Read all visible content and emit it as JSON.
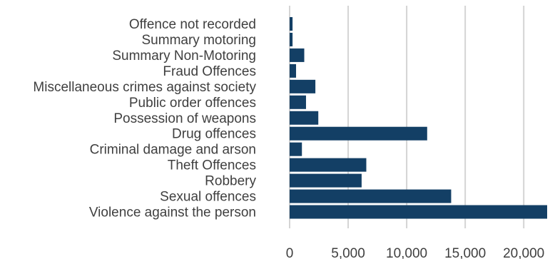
{
  "chart_data": {
    "type": "bar",
    "orientation": "horizontal",
    "categories": [
      "Offence not recorded",
      "Summary motoring",
      "Summary Non-Motoring",
      "Fraud Offences",
      "Miscellaneous crimes against society",
      "Public order offences",
      "Possession of weapons",
      "Drug offences",
      "Criminal damage and arson",
      "Theft Offences",
      "Robbery",
      "Sexual offences",
      "Violence against the person"
    ],
    "values": [
      250,
      250,
      1250,
      550,
      2200,
      1400,
      2450,
      11750,
      1050,
      6550,
      6150,
      13800,
      22000
    ],
    "xticks": [
      0,
      5000,
      10000,
      15000,
      20000
    ],
    "xtick_labels": [
      "0",
      "5,000",
      "10,000",
      "15,000",
      "20,000"
    ],
    "xlim": [
      0,
      22000
    ],
    "grid": true,
    "legend": "none",
    "title": "",
    "xlabel": "",
    "ylabel": "",
    "bar_color": "#133f65",
    "grid_color": "#d4d4d4",
    "text_color": "#3f3f3f"
  }
}
